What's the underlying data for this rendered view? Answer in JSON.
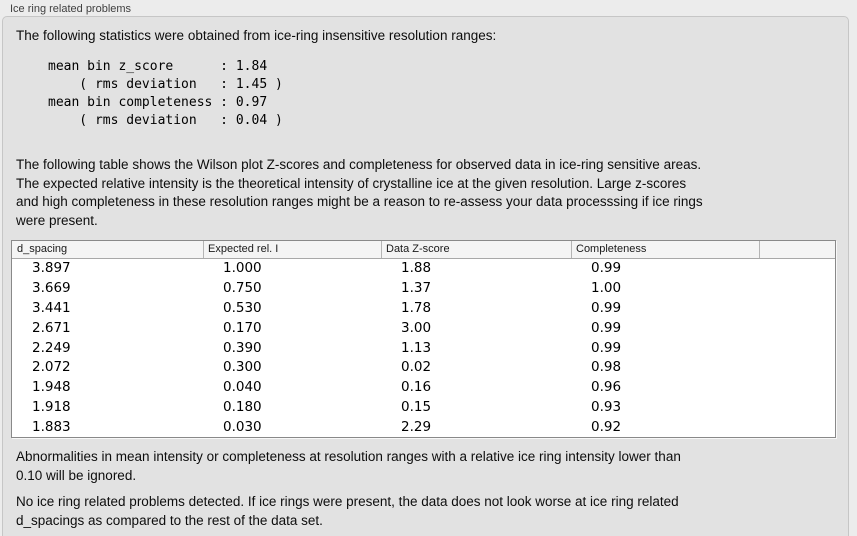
{
  "window": {
    "title": "Ice ring related problems"
  },
  "colors": {
    "page_background": "#ececec",
    "panel_background": "#e2e2e2",
    "panel_border": "#c6c6c6",
    "table_background": "#ffffff",
    "table_border": "#898989",
    "table_header_background": "#f4f4f4",
    "text": "#0d0d0d"
  },
  "panel": {
    "intro": "The following statistics were obtained from ice-ring insensitive resolution ranges:",
    "stats_block": "mean bin z_score      : 1.84\n    ( rms deviation   : 1.45 )\nmean bin completeness : 0.97\n    ( rms deviation   : 0.04 )",
    "table_description": "The following table shows the Wilson plot Z-scores and completeness for observed data in ice-ring sensitive areas.\nThe expected relative intensity is the theoretical intensity of crystalline ice at the given resolution. Large z-scores\nand high completeness in these resolution ranges might be a reason to re-assess your data processsing if ice rings\nwere present.",
    "table": {
      "columns": [
        "d_spacing",
        "Expected rel. I",
        "Data Z-score",
        "Completeness"
      ],
      "rows": [
        [
          "3.897",
          "1.000",
          "1.88",
          "0.99"
        ],
        [
          "3.669",
          "0.750",
          "1.37",
          "1.00"
        ],
        [
          "3.441",
          "0.530",
          "1.78",
          "0.99"
        ],
        [
          "2.671",
          "0.170",
          "3.00",
          "0.99"
        ],
        [
          "2.249",
          "0.390",
          "1.13",
          "0.99"
        ],
        [
          "2.072",
          "0.300",
          "0.02",
          "0.98"
        ],
        [
          "1.948",
          "0.040",
          "0.16",
          "0.96"
        ],
        [
          "1.918",
          "0.180",
          "0.15",
          "0.93"
        ],
        [
          "1.883",
          "0.030",
          "2.29",
          "0.92"
        ]
      ]
    },
    "note": "Abnormalities in mean intensity or completeness at resolution ranges with a relative ice ring intensity lower than\n0.10 will be ignored.",
    "conclusion": "No ice ring related problems detected. If ice rings were present, the data does not look worse at ice ring related\nd_spacings as compared to the rest of the data set."
  }
}
